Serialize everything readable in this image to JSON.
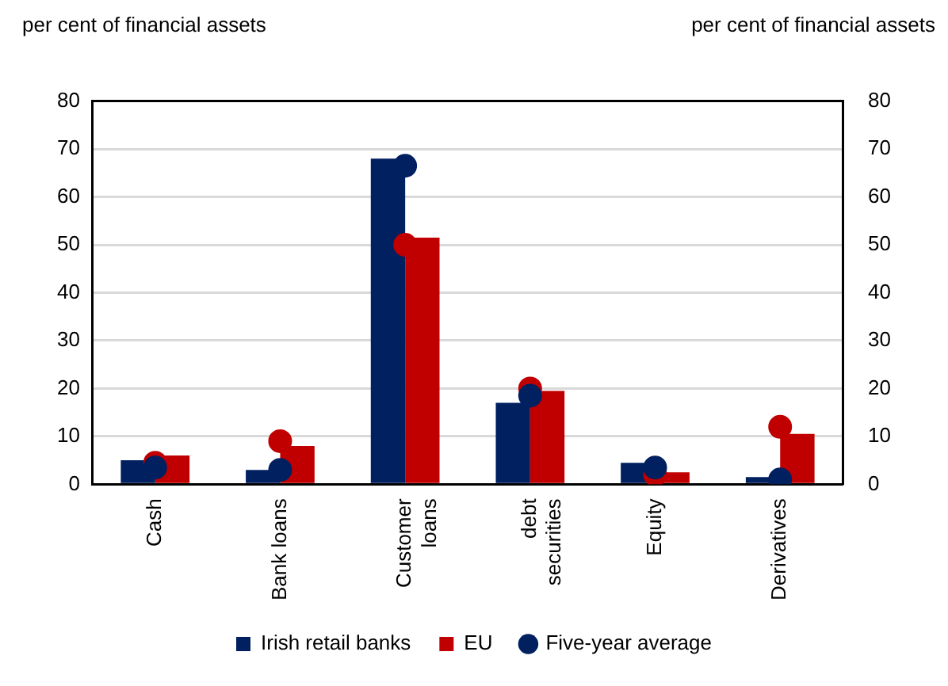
{
  "chart_data": {
    "type": "bar",
    "ylabel": "per cent of financial assets",
    "y2label": "per cent of financial assets",
    "categories": [
      "Cash",
      "Bank loans",
      "Customer\nloans",
      "debt\nsecurities",
      "Equity",
      "Derivatives"
    ],
    "series": [
      {
        "name": "Irish retail banks",
        "color": "#002060",
        "values": [
          5,
          3,
          68,
          17,
          4.5,
          1.5
        ]
      },
      {
        "name": "EU",
        "color": "#c00000",
        "values": [
          6,
          8,
          51.5,
          19.5,
          2.5,
          10.5
        ]
      },
      {
        "name": "Five-year average",
        "type": "scatter",
        "color": "#002060",
        "x": [
          "Cash",
          "Bank loans",
          "Customer\nloans",
          "debt\nsecurities",
          "Equity",
          "Derivatives"
        ],
        "values": [
          3.5,
          3,
          66.5,
          18.5,
          3.5,
          1
        ]
      },
      {
        "type": "scatter",
        "color": "#c00000",
        "x": [
          "Cash",
          "Bank loans",
          "Customer\nloans",
          "debt\nsecurities",
          "Equity",
          "Derivatives"
        ],
        "values": [
          4.5,
          9,
          50,
          20,
          2,
          12
        ]
      }
    ],
    "ylim": [
      0,
      80
    ],
    "yticks": [
      0,
      10,
      20,
      30,
      40,
      50,
      60,
      70,
      80
    ],
    "y2lim": [
      0,
      80
    ],
    "y2ticks": [
      0,
      10,
      20,
      30,
      40,
      50,
      60,
      70,
      80
    ],
    "grid": "y",
    "legend": "bottom",
    "marker": "circle"
  }
}
